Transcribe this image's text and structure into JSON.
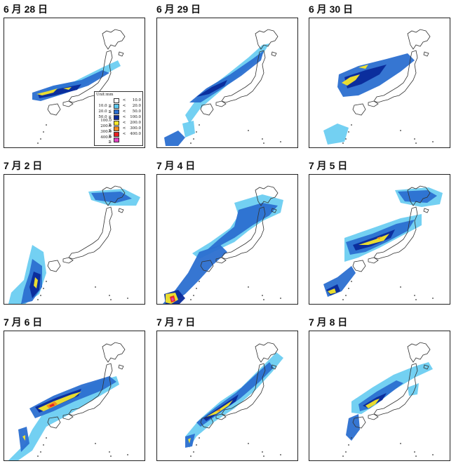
{
  "panels": [
    {
      "title": "6 月 28 日",
      "scheme": "d0628"
    },
    {
      "title": "6 月 29 日",
      "scheme": "d0629"
    },
    {
      "title": "6 月 30 日",
      "scheme": "d0630"
    },
    {
      "title": "7 月 2 日",
      "scheme": "d0702"
    },
    {
      "title": "7 月 4 日",
      "scheme": "d0704"
    },
    {
      "title": "7 月 5 日",
      "scheme": "d0705"
    },
    {
      "title": "7 月 6 日",
      "scheme": "d0706"
    },
    {
      "title": "7 月 7 日",
      "scheme": "d0707"
    },
    {
      "title": "7 月 8 日",
      "scheme": "d0708"
    }
  ],
  "legend": {
    "unit": "Unit:mm",
    "rows": [
      {
        "lo": "",
        "op": "<",
        "hi": "10.0",
        "color": "#ffffff"
      },
      {
        "lo": "10.0 ≦",
        "op": "<",
        "hi": "20.0",
        "color": "#5bc8f0"
      },
      {
        "lo": "20.0 ≦",
        "op": "<",
        "hi": "50.0",
        "color": "#2b6fd0"
      },
      {
        "lo": "50.0 ≦",
        "op": "<",
        "hi": "100.0",
        "color": "#0a2a9a"
      },
      {
        "lo": "100.0 ≦",
        "op": "<",
        "hi": "200.0",
        "color": "#f5e62a"
      },
      {
        "lo": "200.0 ≦",
        "op": "<",
        "hi": "300.0",
        "color": "#f28a1e"
      },
      {
        "lo": "300.0 ≦",
        "op": "<",
        "hi": "400.0",
        "color": "#e82020"
      },
      {
        "lo": "400.0 ≦",
        "op": "",
        "hi": "",
        "color": "#e040c0"
      }
    ]
  },
  "colors": {
    "land_outline": "#333333",
    "light_blue": "#5bc8f0",
    "mid_blue": "#2b6fd0",
    "dark_blue": "#0a2a9a",
    "yellow": "#f5e62a",
    "orange": "#f28a1e",
    "red": "#e82020",
    "magenta": "#e040c0"
  }
}
